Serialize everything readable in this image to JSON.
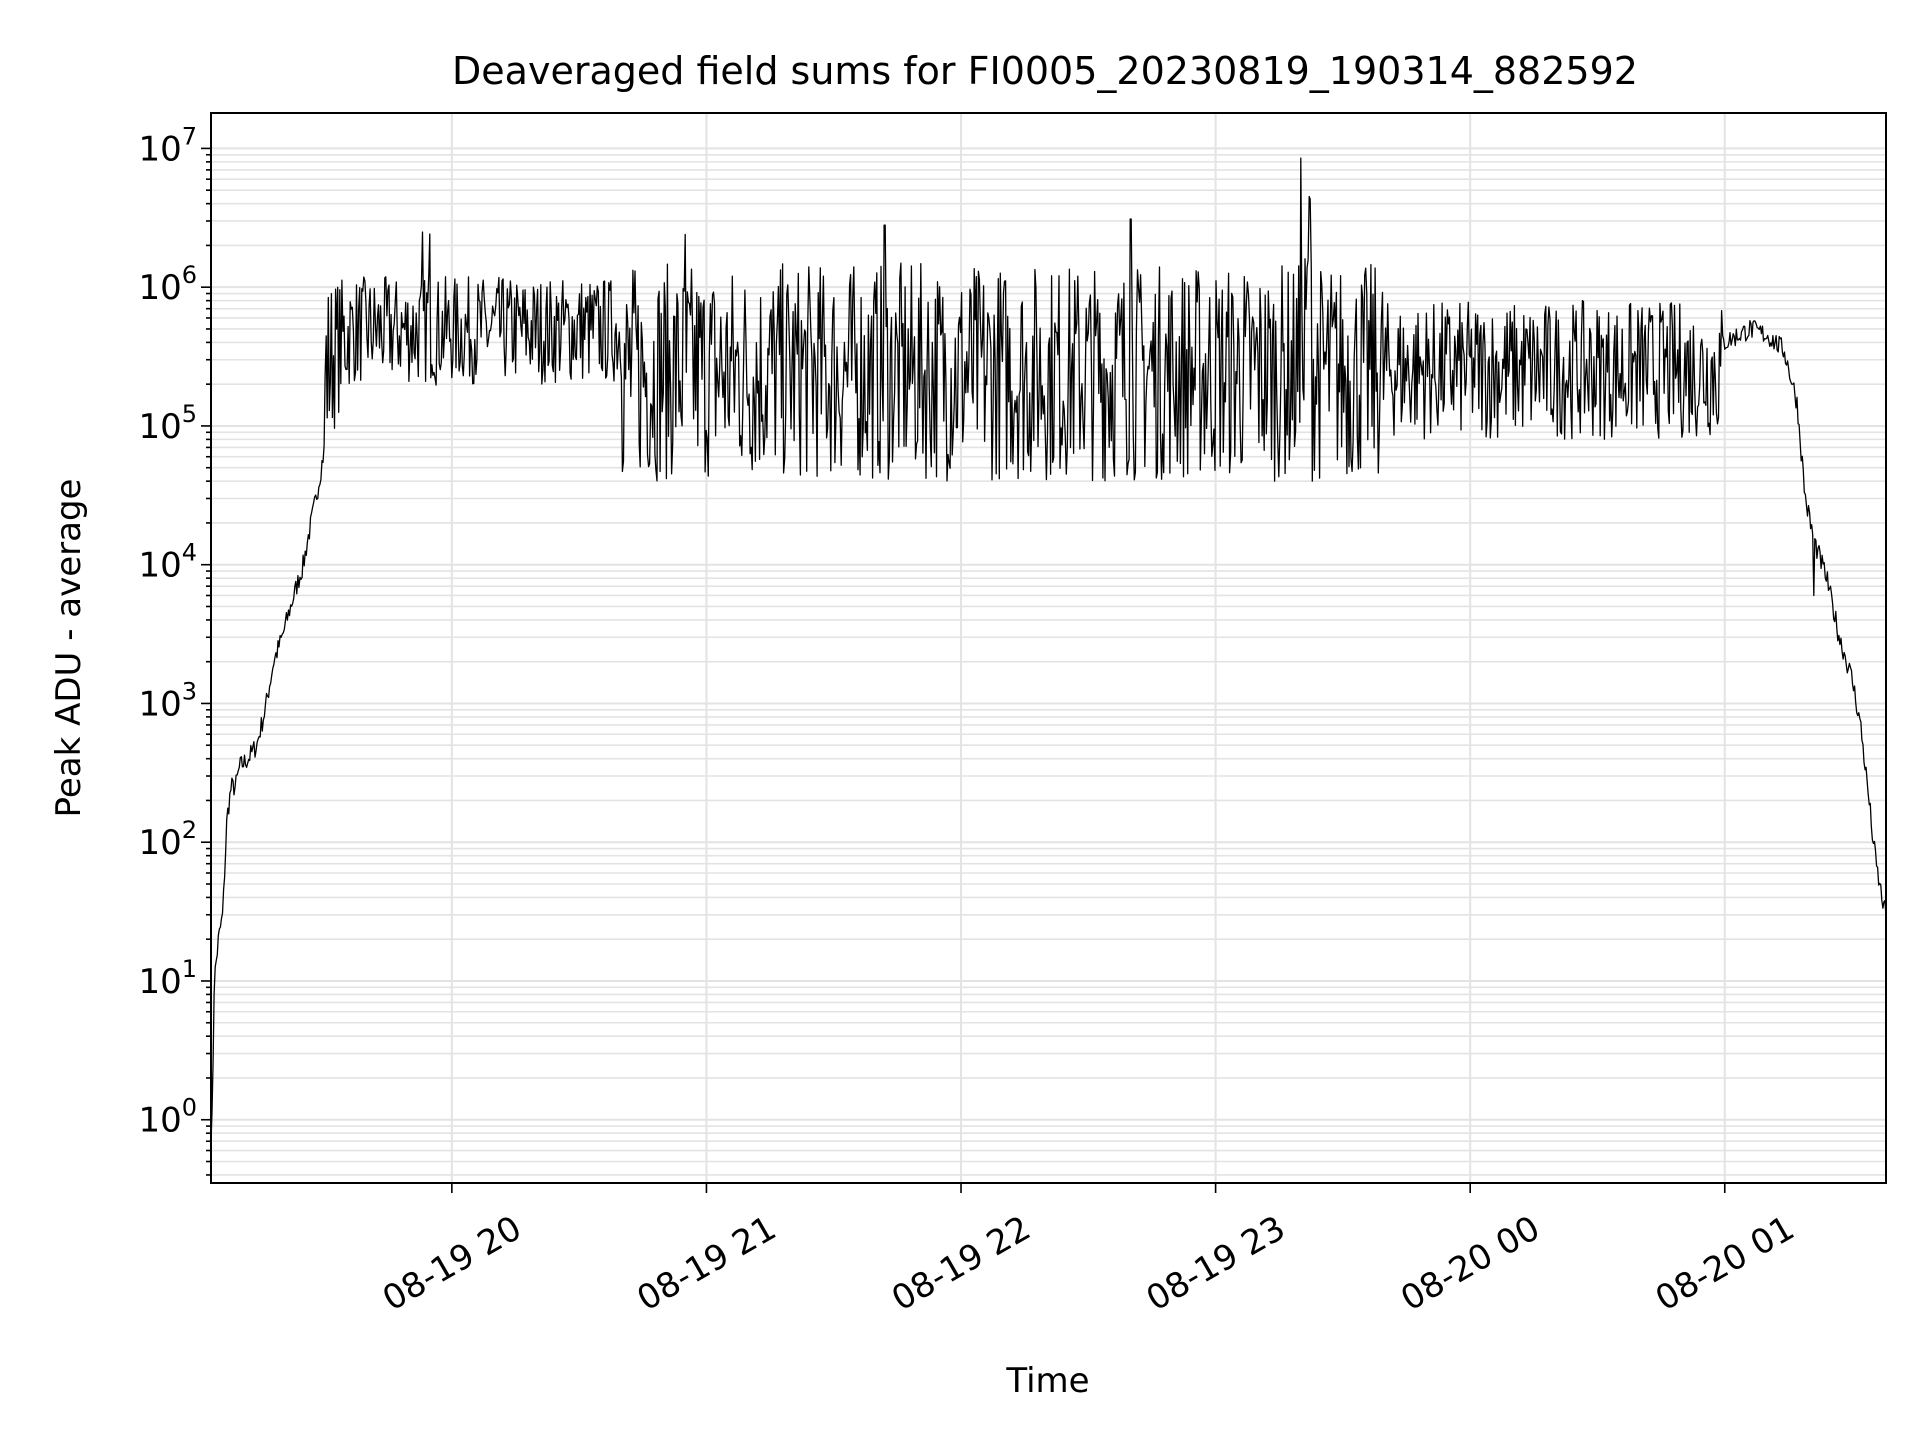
{
  "chart_data": {
    "type": "line",
    "title": "Deaveraged field sums for FI0005_20230819_190314_882592",
    "xlabel": "Time",
    "ylabel": "Peak ADU - average",
    "yscale": "log",
    "ylim": [
      0.35,
      18000000
    ],
    "xlim": [
      "2023-08-19 19:03:14",
      "2023-08-20 01:38:00"
    ],
    "grid": true,
    "x_ticks": [
      {
        "value": "2023-08-19 20:00",
        "label": "08-19 20"
      },
      {
        "value": "2023-08-19 21:00",
        "label": "08-19 21"
      },
      {
        "value": "2023-08-19 22:00",
        "label": "08-19 22"
      },
      {
        "value": "2023-08-19 23:00",
        "label": "08-19 23"
      },
      {
        "value": "2023-08-20 00:00",
        "label": "08-20 00"
      },
      {
        "value": "2023-08-20 01:00",
        "label": "08-20 01"
      }
    ],
    "y_ticks": [
      {
        "value": 1,
        "base": "10",
        "exp": "0"
      },
      {
        "value": 10,
        "base": "10",
        "exp": "1"
      },
      {
        "value": 100,
        "base": "10",
        "exp": "2"
      },
      {
        "value": 1000,
        "base": "10",
        "exp": "3"
      },
      {
        "value": 10000,
        "base": "10",
        "exp": "4"
      },
      {
        "value": 100000,
        "base": "10",
        "exp": "5"
      },
      {
        "value": 1000000,
        "base": "10",
        "exp": "6"
      },
      {
        "value": 10000000,
        "base": "10",
        "exp": "7"
      }
    ],
    "series": [
      {
        "color": "#000000",
        "x": [
          "2023-08-19 19:03:14",
          "2023-08-19 19:03:30",
          "2023-08-19 19:04:00",
          "2023-08-19 19:05:00",
          "2023-08-19 19:06:00",
          "2023-08-19 19:07:00",
          "2023-08-19 19:08:00",
          "2023-08-19 19:09:00",
          "2023-08-19 19:10:00",
          "2023-08-19 19:12:00",
          "2023-08-19 19:14:00",
          "2023-08-19 19:16:00",
          "2023-08-19 19:18:00",
          "2023-08-19 19:20:00",
          "2023-08-19 19:22:00",
          "2023-08-19 19:24:00",
          "2023-08-19 19:25:00",
          "2023-08-19 19:26:00",
          "2023-08-19 19:28:00",
          "2023-08-19 19:30:00",
          "2023-08-19 19:32:00",
          "2023-08-19 19:34:00",
          "2023-08-19 19:36:00",
          "2023-08-19 19:38:00",
          "2023-08-19 19:40:00",
          "2023-08-19 19:43:00",
          "2023-08-19 19:46:00",
          "2023-08-19 19:50:00",
          "2023-08-19 19:53:00",
          "2023-08-19 19:55:00",
          "2023-08-19 19:56:00",
          "2023-08-19 19:58:00",
          "2023-08-19 20:00:00",
          "2023-08-19 20:10:00",
          "2023-08-19 20:20:00",
          "2023-08-19 20:30:00",
          "2023-08-19 20:45:00",
          "2023-08-19 21:00:00",
          "2023-08-19 21:30:00",
          "2023-08-19 22:00:00",
          "2023-08-19 22:30:00",
          "2023-08-19 23:00:00",
          "2023-08-19 23:20:00",
          "2023-08-19 23:22:00",
          "2023-08-19 23:24:00",
          "2023-08-19 23:40:00",
          "2023-08-20 00:00:00",
          "2023-08-20 00:30:00",
          "2023-08-20 00:50:00",
          "2023-08-20 01:00:00",
          "2023-08-20 01:06:00",
          "2023-08-20 01:10:00",
          "2023-08-20 01:14:00",
          "2023-08-20 01:17:00",
          "2023-08-20 01:19:00",
          "2023-08-20 01:21:00",
          "2023-08-20 01:24:00",
          "2023-08-20 01:27:00",
          "2023-08-20 01:30:00",
          "2023-08-20 01:32:00",
          "2023-08-20 01:34:00",
          "2023-08-20 01:35:00",
          "2023-08-20 01:36:00",
          "2023-08-20 01:37:00",
          "2023-08-20 01:38:00"
        ],
        "y": [
          0.8,
          1,
          10,
          20,
          30,
          150,
          250,
          250,
          350,
          400,
          500,
          900,
          2000,
          3000,
          5000,
          8000,
          10000,
          15000,
          30000,
          70000,
          140000,
          220000,
          300000,
          350000,
          400000,
          450000,
          480000,
          350000,
          300000,
          2500000,
          300000,
          350000,
          500000,
          450000,
          700000,
          800000,
          600000,
          300000,
          200000,
          150000,
          150000,
          150000,
          200000,
          8500000,
          200000,
          150000,
          150000,
          250000,
          350000,
          400000,
          500000,
          450000,
          350000,
          150000,
          30000,
          15000,
          8000,
          3000,
          1500,
          700,
          200,
          100,
          60,
          40,
          30
        ],
        "noise": [
          {
            "from": "2023-08-19 19:30:00",
            "to": "2023-08-19 20:40:00",
            "low": 200000,
            "high": 1200000
          },
          {
            "from": "2023-08-19 20:40:00",
            "to": "2023-08-19 23:40:00",
            "low": 40000,
            "high": 1500000
          },
          {
            "from": "2023-08-19 23:40:00",
            "to": "2023-08-20 01:00:00",
            "low": 80000,
            "high": 800000
          }
        ],
        "spikes": [
          {
            "x": "2023-08-19 19:53:00",
            "y": 2500000
          },
          {
            "x": "2023-08-19 20:55:00",
            "y": 2400000
          },
          {
            "x": "2023-08-19 21:42:00",
            "y": 2800000
          },
          {
            "x": "2023-08-19 22:40:00",
            "y": 3100000
          },
          {
            "x": "2023-08-19 23:20:00",
            "y": 8500000
          },
          {
            "x": "2023-08-19 23:22:00",
            "y": 4500000
          },
          {
            "x": "2023-08-20 01:21:00",
            "y": 6000
          }
        ]
      }
    ]
  }
}
